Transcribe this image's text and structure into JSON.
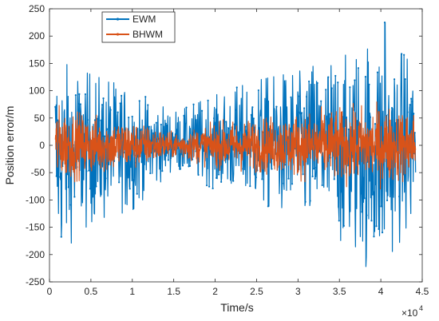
{
  "chart_data": {
    "type": "line",
    "title": "",
    "xlabel": "Time/s",
    "ylabel": "Position error/m",
    "x_multiplier_label": "×10",
    "x_multiplier_exp": "4",
    "xlim": [
      0,
      4.5
    ],
    "ylim": [
      -250,
      250
    ],
    "xticks": [
      0,
      0.5,
      1,
      1.5,
      2,
      2.5,
      3,
      3.5,
      4,
      4.5
    ],
    "xtick_labels": [
      "0",
      "0.5",
      "1",
      "1.5",
      "2",
      "2.5",
      "3",
      "3.5",
      "4",
      "4.5"
    ],
    "yticks": [
      -250,
      -200,
      -150,
      -100,
      -50,
      0,
      50,
      100,
      150,
      200,
      250
    ],
    "ytick_labels": [
      "-250",
      "-200",
      "-150",
      "-100",
      "-50",
      "0",
      "50",
      "100",
      "150",
      "200",
      "250"
    ],
    "grid": false,
    "legend_position": "top-left",
    "x_range_data": [
      0.07,
      4.42
    ],
    "series": [
      {
        "name": "EWM",
        "color": "#0072BD",
        "envelope_x": [
          0.07,
          0.5,
          1.0,
          1.5,
          2.0,
          2.5,
          3.0,
          3.5,
          4.0,
          4.42
        ],
        "envelope_upper": [
          145,
          120,
          95,
          55,
          85,
          110,
          125,
          150,
          170,
          145
        ],
        "envelope_lower": [
          -195,
          -130,
          -110,
          -40,
          -75,
          -95,
          -125,
          -160,
          -205,
          -130
        ],
        "peak_max": {
          "x": 4.05,
          "y": 225
        },
        "peak_min": {
          "x": 3.82,
          "y": -222
        }
      },
      {
        "name": "BHWM",
        "color": "#D95319",
        "envelope_x": [
          0.07,
          0.5,
          1.0,
          1.5,
          2.0,
          2.5,
          3.0,
          3.5,
          4.0,
          4.42
        ],
        "envelope_upper": [
          80,
          60,
          50,
          25,
          45,
          55,
          65,
          75,
          80,
          70
        ],
        "envelope_lower": [
          -75,
          -60,
          -50,
          -25,
          -45,
          -55,
          -65,
          -75,
          -80,
          -70
        ]
      }
    ]
  }
}
